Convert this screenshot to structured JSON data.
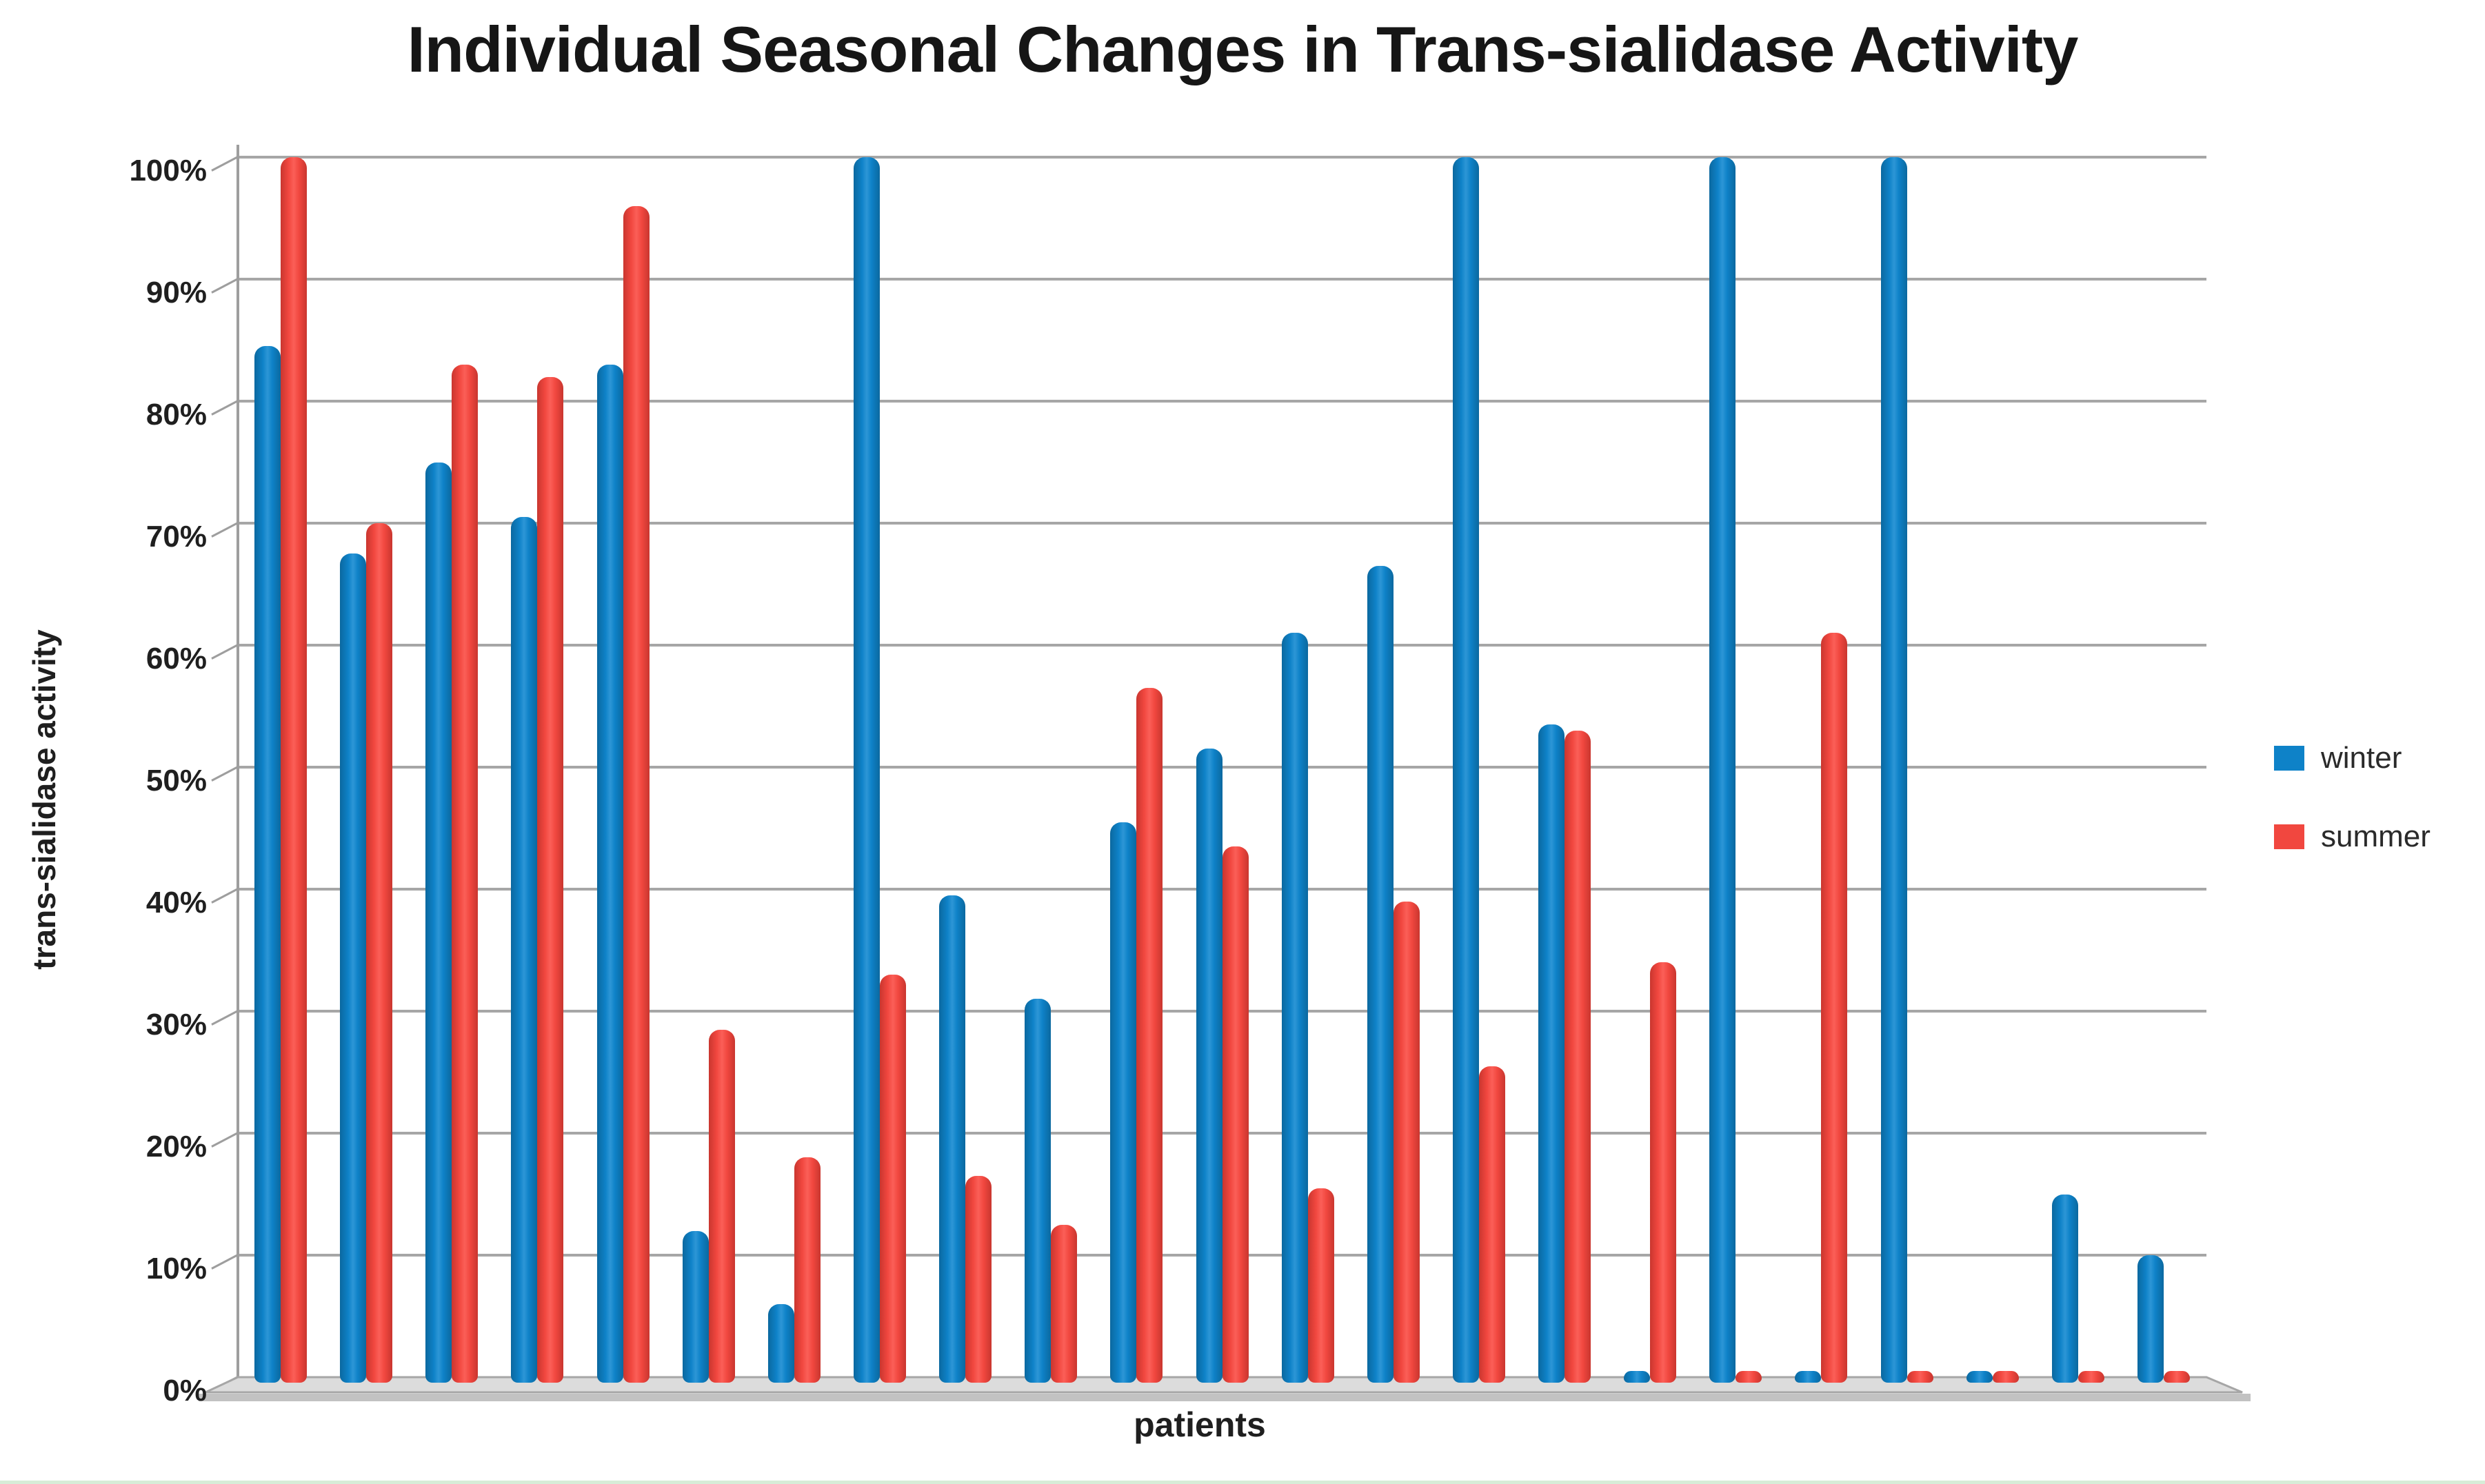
{
  "title": "Individual Seasonal Changes in Trans-sialidase Activity",
  "y_axis": {
    "label": "trans-sialidase activity",
    "tick_labels": [
      "0%",
      "10%",
      "20%",
      "30%",
      "40%",
      "50%",
      "60%",
      "70%",
      "80%",
      "90%",
      "100%"
    ]
  },
  "x_axis": {
    "label": "patients"
  },
  "legend": {
    "position": "right",
    "items": [
      {
        "label": "winter",
        "color": "#0e82c8"
      },
      {
        "label": "summer",
        "color": "#f1473f"
      }
    ]
  },
  "colors": {
    "winter_bar": "#0e82c8",
    "summer_bar": "#f1473f",
    "gridline": "#a6a6a6",
    "axis": "#9e9e9e",
    "floor_fill": "#dcdcdc",
    "floor_shadow": "#c2c2c2",
    "text": "#1f1f1f",
    "bottom_artifact_line": "#d7ecd7"
  },
  "chart_data": {
    "type": "bar",
    "title": "Individual Seasonal Changes in Trans-sialidase Activity",
    "xlabel": "patients",
    "ylabel": "trans-sialidase activity",
    "ylim": [
      0,
      100
    ],
    "y_tick_labels": [
      "0%",
      "10%",
      "20%",
      "30%",
      "40%",
      "50%",
      "60%",
      "70%",
      "80%",
      "90%",
      "100%"
    ],
    "x_tick_labels_visible": false,
    "grid": "horizontal",
    "legend_position": "right",
    "n_patients": 23,
    "units": "percent",
    "series": [
      {
        "name": "winter",
        "color": "#0e82c8",
        "values": [
          84.5,
          67.5,
          75,
          70.5,
          83,
          12,
          6,
          100,
          39.5,
          31,
          45.5,
          51.5,
          61,
          66.5,
          100,
          53.5,
          0.5,
          100,
          0.5,
          100,
          0.5,
          15,
          10
        ]
      },
      {
        "name": "summer",
        "color": "#f1473f",
        "values": [
          100,
          70,
          83,
          82,
          96,
          28.5,
          18,
          33,
          16.5,
          12.5,
          56.5,
          43.5,
          15.5,
          39,
          25.5,
          53,
          34,
          0.5,
          61,
          0.5,
          0.5,
          0.5,
          0.5
        ]
      }
    ]
  }
}
